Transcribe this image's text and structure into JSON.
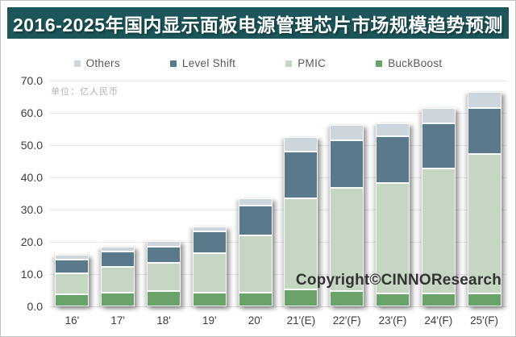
{
  "title": "2016-2025年国内显示面板电源管理芯片市场规模趋势预测",
  "unit_label": "单位：亿人民币",
  "copyright": "Copyright©CINNOResearch",
  "colors": {
    "banner_bg": "#1c565a",
    "banner_text": "#ffffff",
    "grid": "#e7e7e7",
    "baseline": "#dddddd",
    "axis_text": "#3d3d3d",
    "unit_text": "#aeb6ae",
    "legend_text": "#595959",
    "copyright_text": "#333333"
  },
  "chart_data": {
    "type": "bar",
    "stacked": true,
    "title": "2016-2025年国内显示面板电源管理芯片市场规模趋势预测",
    "unit": "亿人民币",
    "categories": [
      "16'",
      "17'",
      "18'",
      "19'",
      "20'",
      "21'(E)",
      "22'(F)",
      "23'(F)",
      "24'(F)",
      "25'(F)"
    ],
    "series": [
      {
        "name": "BuckBoost",
        "color": "#69a369",
        "values": [
          3.8,
          4.3,
          4.8,
          4.3,
          4.3,
          5.2,
          4.8,
          3.9,
          3.9,
          3.9
        ]
      },
      {
        "name": "PMIC",
        "color": "#c5d6c2",
        "values": [
          6.5,
          7.9,
          8.7,
          12.2,
          17.8,
          28.3,
          32.0,
          34.4,
          38.8,
          43.4
        ]
      },
      {
        "name": "Level Shift",
        "color": "#5a7a8c",
        "values": [
          4.2,
          4.9,
          5.0,
          6.8,
          9.2,
          14.4,
          14.8,
          14.4,
          14.1,
          14.3
        ]
      },
      {
        "name": "Others",
        "color": "#ccd6dc",
        "values": [
          1.5,
          1.4,
          1.7,
          1.5,
          2.2,
          4.5,
          4.6,
          4.1,
          4.6,
          4.8
        ]
      }
    ],
    "totals": [
      16.0,
      18.5,
      20.2,
      24.8,
      33.5,
      52.4,
      56.2,
      56.8,
      61.4,
      66.4
    ],
    "stack_order_bottom_to_top": [
      "BuckBoost",
      "PMIC",
      "Level Shift",
      "Others"
    ],
    "legend_order": [
      "Others",
      "Level Shift",
      "PMIC",
      "BuckBoost"
    ],
    "legend_position": "top",
    "grid": true,
    "y_ticks": [
      0,
      10,
      20,
      30,
      40,
      50,
      60,
      70
    ],
    "y_tick_format": "one_decimal",
    "ylim": [
      0,
      70
    ],
    "xlabel": "",
    "ylabel": ""
  }
}
